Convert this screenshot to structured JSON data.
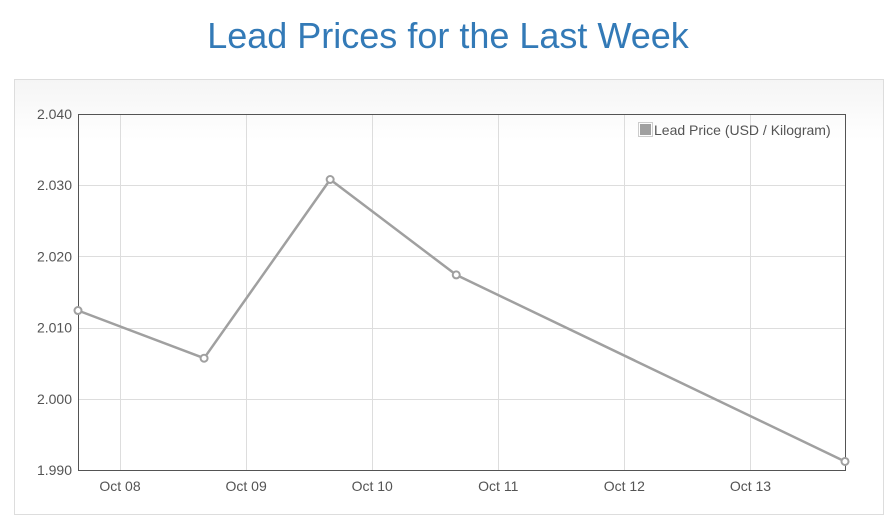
{
  "page": {
    "title": "Lead Prices for the Last Week"
  },
  "chart_data": {
    "type": "line",
    "title": "Lead Prices for the Last Week",
    "xlabel": "",
    "ylabel": "",
    "x_range": [
      "2015-10-07T16:00",
      "2015-10-13T18:00"
    ],
    "ylim": [
      1.99,
      2.04
    ],
    "y_ticks": [
      "1.990",
      "2.000",
      "2.010",
      "2.020",
      "2.030",
      "2.040"
    ],
    "x_ticks": [
      {
        "label": "Oct 08",
        "date": "2015-10-08"
      },
      {
        "label": "Oct 09",
        "date": "2015-10-09"
      },
      {
        "label": "Oct 10",
        "date": "2015-10-10"
      },
      {
        "label": "Oct 11",
        "date": "2015-10-11"
      },
      {
        "label": "Oct 12",
        "date": "2015-10-12"
      },
      {
        "label": "Oct 13",
        "date": "2015-10-13"
      }
    ],
    "grid": true,
    "legend_position": "top-right",
    "series": [
      {
        "name": "Lead Price (USD / Kilogram)",
        "color": "#a0a0a0",
        "points": [
          {
            "x": "2015-10-07T16:00",
            "y": 2.0124
          },
          {
            "x": "2015-10-08T16:00",
            "y": 2.0057
          },
          {
            "x": "2015-10-09T16:00",
            "y": 2.0308
          },
          {
            "x": "2015-10-10T16:00",
            "y": 2.0174
          },
          {
            "x": "2015-10-13T18:00",
            "y": 1.9912
          }
        ]
      }
    ]
  }
}
